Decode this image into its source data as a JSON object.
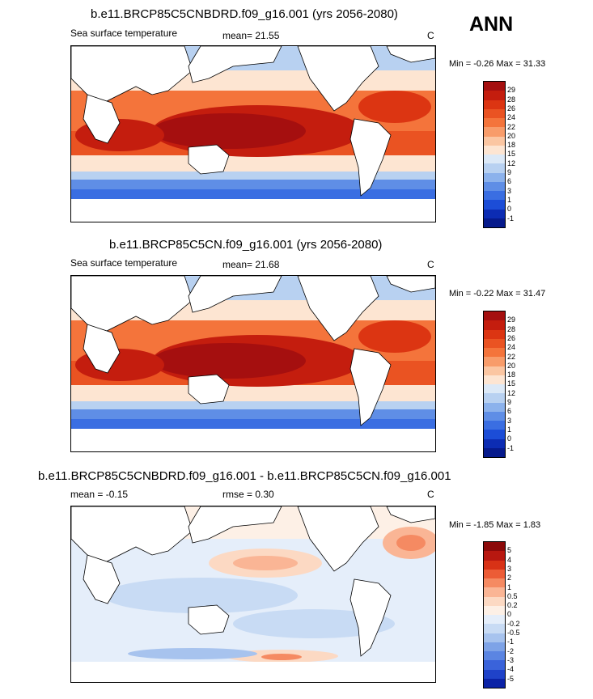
{
  "season": "ANN",
  "panels": [
    {
      "title": "b.e11.BRCP85C5CNBDRD.f09_g16.001 (yrs 2056-2080)",
      "left_label": "Sea surface temperature",
      "stat_label": "mean=  21.55",
      "units": "C",
      "minmax": "Min =  -0.26 Max =  31.33",
      "colorbar_labels": [
        "29",
        "28",
        "26",
        "24",
        "22",
        "20",
        "18",
        "15",
        "12",
        "9",
        "6",
        "3",
        "1",
        "0",
        "-1"
      ],
      "colorbar_colors": [
        "#a50f0f",
        "#c41d0e",
        "#dc3512",
        "#ea5322",
        "#f4743b",
        "#f89c6a",
        "#fbc6a2",
        "#fde5d2",
        "#dce9f7",
        "#b8d1f1",
        "#8cb2ec",
        "#5f8ee6",
        "#3a6ee2",
        "#1c4dd7",
        "#0c2cb3",
        "#061a8c"
      ],
      "legend_type": "sst"
    },
    {
      "title": "b.e11.BRCP85C5CN.f09_g16.001 (yrs 2056-2080)",
      "left_label": "Sea surface temperature",
      "stat_label": "mean=  21.68",
      "units": "C",
      "minmax": "Min =  -0.22 Max =  31.47",
      "colorbar_labels": [
        "29",
        "28",
        "26",
        "24",
        "22",
        "20",
        "18",
        "15",
        "12",
        "9",
        "6",
        "3",
        "1",
        "0",
        "-1"
      ],
      "colorbar_colors": [
        "#a50f0f",
        "#c41d0e",
        "#dc3512",
        "#ea5322",
        "#f4743b",
        "#f89c6a",
        "#fbc6a2",
        "#fde5d2",
        "#dce9f7",
        "#b8d1f1",
        "#8cb2ec",
        "#5f8ee6",
        "#3a6ee2",
        "#1c4dd7",
        "#0c2cb3",
        "#061a8c"
      ],
      "legend_type": "sst"
    },
    {
      "title": "b.e11.BRCP85C5CNBDRD.f09_g16.001 - b.e11.BRCP85C5CN.f09_g16.001",
      "left_label": "mean =  -0.15",
      "stat_label": "rmse =   0.30",
      "units": "C",
      "minmax": "Min =  -1.85 Max =   1.83",
      "colorbar_labels": [
        "5",
        "4",
        "3",
        "2",
        "1",
        "0.5",
        "0.2",
        "0",
        "-0.2",
        "-0.5",
        "-1",
        "-2",
        "-3",
        "-4",
        "-5"
      ],
      "colorbar_colors": [
        "#8c0a0a",
        "#b81810",
        "#d83216",
        "#ec5c36",
        "#f58a62",
        "#fab595",
        "#fcd9c3",
        "#fdf0e6",
        "#e5eefa",
        "#c8dbf4",
        "#a7c3ee",
        "#7ea3e7",
        "#5b85e2",
        "#3a63da",
        "#1f42c9",
        "#0b22a6"
      ],
      "legend_type": "diff"
    }
  ]
}
